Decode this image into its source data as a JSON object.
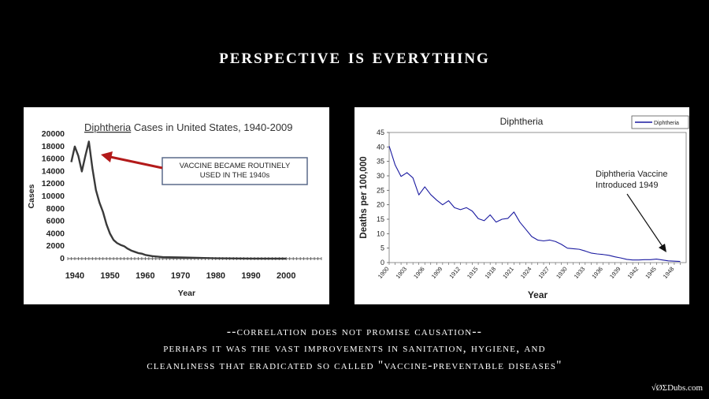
{
  "slide": {
    "title": "Perspective is Everything",
    "caption_lines": [
      "--Correlation does not promise causation--",
      "Perhaps it was the vast improvements in sanitation, hygiene, and",
      "cleanliness that eradicated so called \"vaccine-preventable diseases\""
    ],
    "watermark": "√ØΣDubs.com"
  },
  "chart_data": [
    {
      "type": "line",
      "title_highlight": "Diphtheria",
      "title_rest": " Cases in United States, 1940-2009",
      "xlabel": "Year",
      "ylabel": "Cases",
      "xlim": [
        1938,
        2010
      ],
      "ylim": [
        0,
        20000
      ],
      "x_ticks": [
        1940,
        1950,
        1960,
        1970,
        1980,
        1990,
        2000
      ],
      "y_ticks": [
        0,
        2000,
        4000,
        6000,
        8000,
        10000,
        12000,
        14000,
        16000,
        18000,
        20000
      ],
      "annotation": [
        "VACCINE BECAME ROUTINELY",
        "USED IN THE 1940s"
      ],
      "series": [
        {
          "color": "#3a3a3a",
          "x": [
            1939,
            1940,
            1941,
            1942,
            1943,
            1944,
            1945,
            1946,
            1947,
            1948,
            1949,
            1950,
            1951,
            1952,
            1953,
            1954,
            1955,
            1956,
            1957,
            1958,
            1959,
            1960,
            1962,
            1965,
            1970,
            1980,
            1990,
            2000
          ],
          "y": [
            15500,
            18000,
            16500,
            14000,
            16500,
            18800,
            14500,
            11000,
            9000,
            7500,
            5500,
            4000,
            3000,
            2500,
            2200,
            2000,
            1600,
            1300,
            1100,
            900,
            800,
            600,
            400,
            250,
            200,
            50,
            5,
            1
          ]
        }
      ]
    },
    {
      "type": "line",
      "title": "Diphtheria",
      "xlabel": "Year",
      "ylabel": "Deaths per 100,000",
      "xlim": [
        1900,
        1950
      ],
      "ylim": [
        0,
        45
      ],
      "x_ticks": [
        1900,
        1903,
        1906,
        1909,
        1912,
        1915,
        1918,
        1921,
        1924,
        1927,
        1930,
        1933,
        1936,
        1939,
        1942,
        1945,
        1948
      ],
      "y_ticks": [
        0,
        5,
        10,
        15,
        20,
        25,
        30,
        35,
        40,
        45
      ],
      "legend": "Diphtheria",
      "legend_position": "top-right",
      "annotation": [
        "Diphtheria Vaccine",
        "Introduced 1949"
      ],
      "series": [
        {
          "name": "Diphtheria",
          "color": "#1a1aa0",
          "x": [
            1900,
            1901,
            1902,
            1903,
            1904,
            1905,
            1906,
            1907,
            1908,
            1909,
            1910,
            1911,
            1912,
            1913,
            1914,
            1915,
            1916,
            1917,
            1918,
            1919,
            1920,
            1921,
            1922,
            1923,
            1924,
            1925,
            1926,
            1927,
            1928,
            1929,
            1930,
            1931,
            1932,
            1933,
            1934,
            1935,
            1936,
            1937,
            1938,
            1939,
            1940,
            1941,
            1942,
            1943,
            1944,
            1945,
            1946,
            1947,
            1948,
            1949
          ],
          "y": [
            40.3,
            33.8,
            29.8,
            31.1,
            29.3,
            23.4,
            26.2,
            23.5,
            21.6,
            20,
            21.4,
            19,
            18.3,
            19,
            17.8,
            15.2,
            14.5,
            16.5,
            14,
            15,
            15.3,
            17.5,
            14,
            11.5,
            9,
            7.8,
            7.5,
            7.8,
            7.3,
            6.3,
            5,
            4.8,
            4.6,
            4,
            3.3,
            3,
            2.8,
            2.5,
            2,
            1.6,
            1.1,
            0.9,
            0.9,
            1,
            1,
            1.2,
            0.9,
            0.6,
            0.5,
            0.4
          ]
        }
      ]
    }
  ]
}
